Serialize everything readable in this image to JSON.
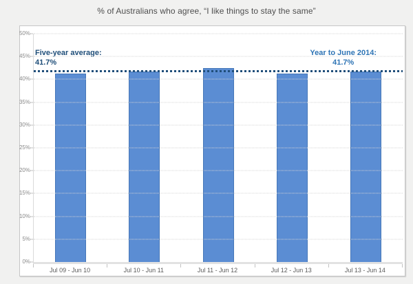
{
  "title": "% of Australians who agree, “I like things to stay the same”",
  "chart_data": {
    "type": "bar",
    "title": "% of Australians who agree, “I like things to stay the same”",
    "categories": [
      "Jul 09 - Jun 10",
      "Jul 10 - Jun 11",
      "Jul 11 - Jun 12",
      "Jul 12 - Jun 13",
      "Jul 13 - Jun 14"
    ],
    "values": [
      41.3,
      41.7,
      42.4,
      41.2,
      41.7
    ],
    "xlabel": "",
    "ylabel": "",
    "ylim": [
      0,
      50
    ],
    "yticks": [
      "0%",
      "5%",
      "10%",
      "15%",
      "20%",
      "25%",
      "30%",
      "35%",
      "40%",
      "45%",
      "50%"
    ],
    "ytick_values": [
      0,
      5,
      10,
      15,
      20,
      25,
      30,
      35,
      40,
      45,
      50
    ],
    "grid": "horizontal-dotted",
    "legend": "none",
    "bar_color": "#5b8dd3",
    "bar_border_color": "#4677b8",
    "average_line": {
      "value": 41.7,
      "style": "dotted",
      "color": "#1f4e7a"
    },
    "annotations": [
      {
        "position": "left",
        "label": "Five-year average:",
        "value": "41.7%",
        "color": "#1f4e79"
      },
      {
        "position": "right",
        "label": "Year to June 2014:",
        "value": "41.7%",
        "color": "#2e74b5"
      }
    ]
  }
}
